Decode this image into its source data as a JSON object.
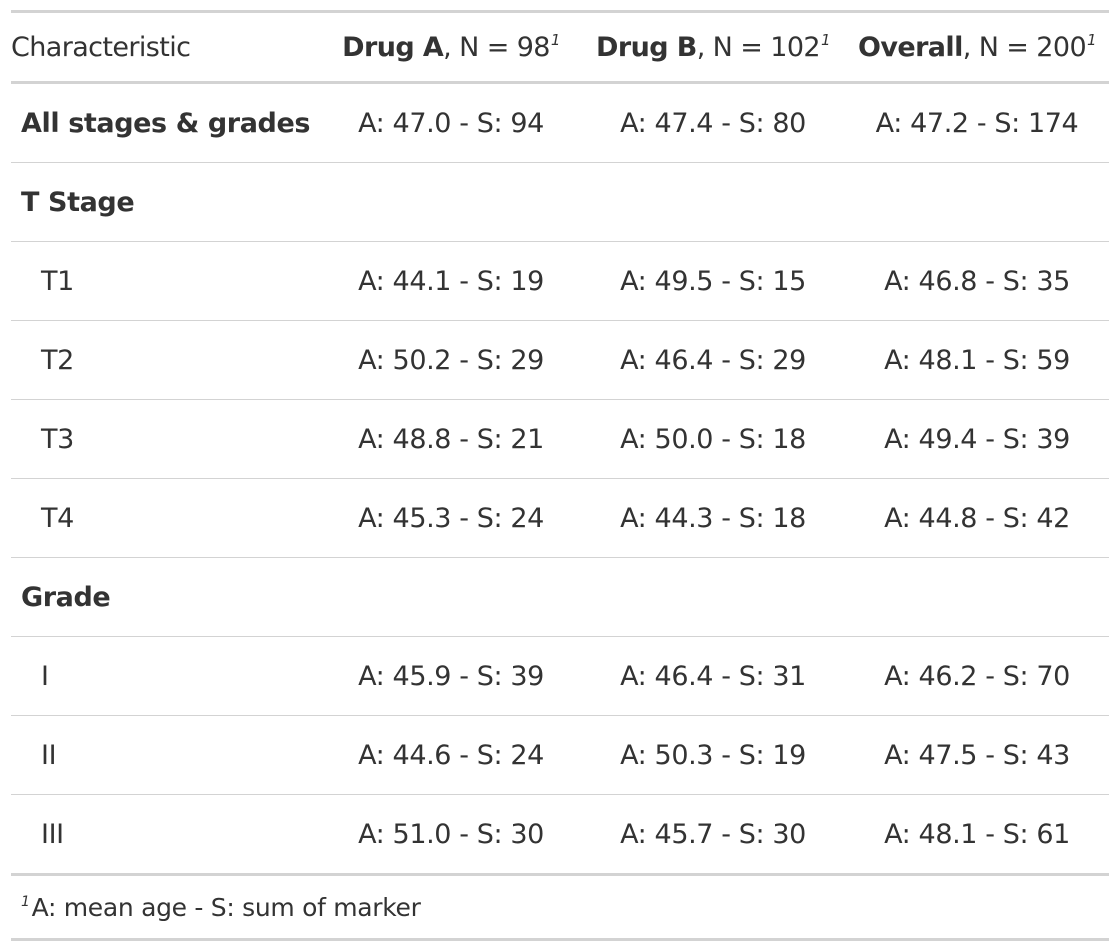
{
  "header": {
    "characteristic": "Characteristic",
    "columns": [
      {
        "group": "Drug A",
        "n_text": ", N = 98",
        "footnote_mark": "1"
      },
      {
        "group": "Drug B",
        "n_text": ", N = 102",
        "footnote_mark": "1"
      },
      {
        "group": "Overall",
        "n_text": ", N = 200",
        "footnote_mark": "1"
      }
    ]
  },
  "rows": [
    {
      "label": "All stages & grades",
      "type": "summary",
      "values": [
        "A: 47.0 - S: 94",
        "A: 47.4 - S: 80",
        "A: 47.2 - S: 174"
      ]
    },
    {
      "label": "T Stage",
      "type": "group",
      "values": [
        "",
        "",
        ""
      ]
    },
    {
      "label": "T1",
      "type": "level",
      "values": [
        "A: 44.1 - S: 19",
        "A: 49.5 - S: 15",
        "A: 46.8 - S: 35"
      ]
    },
    {
      "label": "T2",
      "type": "level",
      "values": [
        "A: 50.2 - S: 29",
        "A: 46.4 - S: 29",
        "A: 48.1 - S: 59"
      ]
    },
    {
      "label": "T3",
      "type": "level",
      "values": [
        "A: 48.8 - S: 21",
        "A: 50.0 - S: 18",
        "A: 49.4 - S: 39"
      ]
    },
    {
      "label": "T4",
      "type": "level",
      "values": [
        "A: 45.3 - S: 24",
        "A: 44.3 - S: 18",
        "A: 44.8 - S: 42"
      ]
    },
    {
      "label": "Grade",
      "type": "group",
      "values": [
        "",
        "",
        ""
      ]
    },
    {
      "label": "I",
      "type": "level",
      "values": [
        "A: 45.9 - S: 39",
        "A: 46.4 - S: 31",
        "A: 46.2 - S: 70"
      ]
    },
    {
      "label": "II",
      "type": "level",
      "values": [
        "A: 44.6 - S: 24",
        "A: 50.3 - S: 19",
        "A: 47.5 - S: 43"
      ]
    },
    {
      "label": "III",
      "type": "level",
      "values": [
        "A: 51.0 - S: 30",
        "A: 45.7 - S: 30",
        "A: 48.1 - S: 61"
      ]
    }
  ],
  "footnote": {
    "mark": "1",
    "text": "A: mean age - S: sum of marker"
  },
  "colors": {
    "text": "#333333",
    "rule": "#d3d3d3"
  }
}
